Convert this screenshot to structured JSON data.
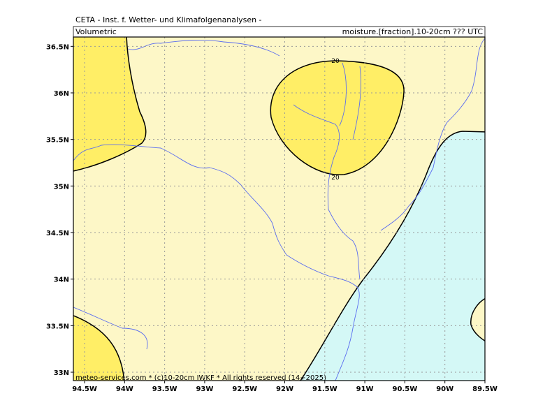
{
  "header": {
    "title": "CETA - Inst. f. Wetter- und Klimafolgenanalysen -",
    "left": "Volumetric",
    "right": "moisture.[fraction].10-20cm ??? UTC"
  },
  "map": {
    "xlim": [
      -94.64,
      -89.5
    ],
    "ylim": [
      32.91,
      36.6
    ],
    "xticks": [
      {
        "value": -94.5,
        "label": "94.5W"
      },
      {
        "value": -94,
        "label": "94W"
      },
      {
        "value": -93.5,
        "label": "93.5W"
      },
      {
        "value": -93,
        "label": "93W"
      },
      {
        "value": -92.5,
        "label": "92.5W"
      },
      {
        "value": -92,
        "label": "92W"
      },
      {
        "value": -91.5,
        "label": "91.5W"
      },
      {
        "value": -91,
        "label": "91W"
      },
      {
        "value": -90.5,
        "label": "90.5W"
      },
      {
        "value": -90,
        "label": "90W"
      },
      {
        "value": -89.5,
        "label": "89.5W"
      }
    ],
    "yticks": [
      {
        "value": 33,
        "label": "33N"
      },
      {
        "value": 33.5,
        "label": "33.5N"
      },
      {
        "value": 34,
        "label": "34N"
      },
      {
        "value": 34.5,
        "label": "34.5N"
      },
      {
        "value": 35,
        "label": "35N"
      },
      {
        "value": 35.5,
        "label": "35.5N"
      },
      {
        "value": 36,
        "label": "36N"
      },
      {
        "value": 36.5,
        "label": "36.5N"
      }
    ],
    "contour_labels": [
      "20",
      "20"
    ]
  },
  "footer": "meteo-services.com * (c)10-20cm IWKF * All rights reserved (14+2025)"
}
